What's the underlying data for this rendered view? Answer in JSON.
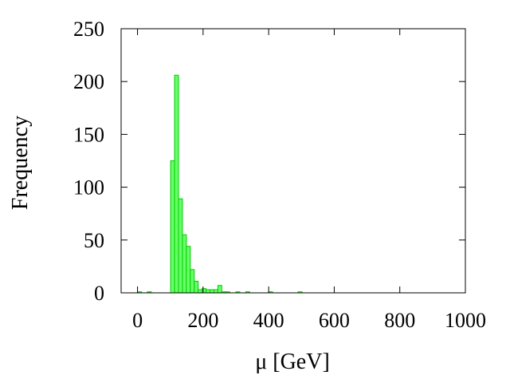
{
  "chart_data": {
    "type": "bar",
    "title": "",
    "xlabel": "μ [GeV]",
    "ylabel": "Frequency",
    "xlim": [
      -50,
      1000
    ],
    "ylim": [
      0,
      250
    ],
    "xticks": [
      0,
      200,
      400,
      600,
      800,
      1000
    ],
    "yticks": [
      0,
      50,
      100,
      150,
      200,
      250
    ],
    "bin_width": 12,
    "grid": false,
    "legend": "none",
    "bar_color": "#66ff66",
    "bar_edge_color": "#00cc00",
    "bins": [
      {
        "x": 0,
        "value": 1
      },
      {
        "x": 30,
        "value": 1
      },
      {
        "x": 101,
        "value": 125
      },
      {
        "x": 113,
        "value": 206
      },
      {
        "x": 125,
        "value": 89
      },
      {
        "x": 137,
        "value": 55
      },
      {
        "x": 149,
        "value": 44
      },
      {
        "x": 161,
        "value": 22
      },
      {
        "x": 173,
        "value": 11
      },
      {
        "x": 185,
        "value": 3
      },
      {
        "x": 197,
        "value": 4
      },
      {
        "x": 209,
        "value": 3
      },
      {
        "x": 221,
        "value": 3
      },
      {
        "x": 233,
        "value": 3
      },
      {
        "x": 245,
        "value": 7
      },
      {
        "x": 257,
        "value": 1
      },
      {
        "x": 269,
        "value": 1
      },
      {
        "x": 300,
        "value": 1
      },
      {
        "x": 330,
        "value": 1
      },
      {
        "x": 400,
        "value": 1
      },
      {
        "x": 490,
        "value": 1
      }
    ]
  }
}
